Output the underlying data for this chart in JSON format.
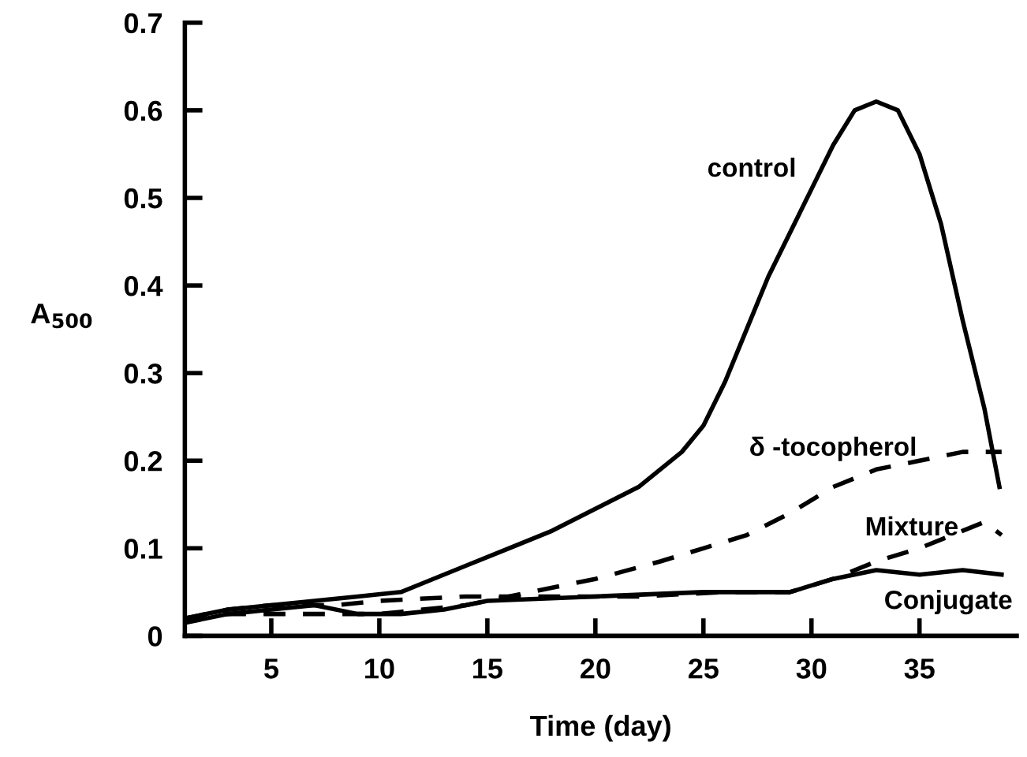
{
  "chart_data": {
    "type": "line",
    "xlabel": "Time (day)",
    "ylabel": "A$_{500}$",
    "xlim": [
      1,
      39.5
    ],
    "ylim": [
      0,
      0.7
    ],
    "xticks": [
      5,
      10,
      15,
      20,
      25,
      30,
      35
    ],
    "yticks": [
      0,
      0.1,
      0.2,
      0.3,
      0.4,
      0.5,
      0.6,
      0.7
    ],
    "grid": false,
    "legend": false,
    "marker": "none",
    "series": [
      {
        "name": "control",
        "color": "#000000",
        "line_style": "solid",
        "x": [
          1,
          3,
          5,
          7,
          9,
          11,
          12,
          14,
          16,
          18,
          20,
          22,
          24,
          25,
          26,
          27,
          28,
          29,
          30,
          31,
          32,
          33,
          34,
          35,
          36,
          37,
          38,
          38.7
        ],
        "values": [
          0.02,
          0.03,
          0.035,
          0.04,
          0.045,
          0.05,
          0.06,
          0.08,
          0.1,
          0.12,
          0.145,
          0.17,
          0.21,
          0.24,
          0.29,
          0.35,
          0.41,
          0.46,
          0.51,
          0.56,
          0.6,
          0.61,
          0.6,
          0.55,
          0.47,
          0.36,
          0.26,
          0.17
        ]
      },
      {
        "name": "δ -tocopherol",
        "color": "#000000",
        "line_style": "dashed",
        "x": [
          1,
          3,
          5,
          8,
          10,
          12,
          14,
          17,
          20,
          23,
          25,
          27,
          29,
          31,
          33,
          35,
          37,
          38.8
        ],
        "values": [
          0.02,
          0.025,
          0.025,
          0.025,
          0.025,
          0.03,
          0.035,
          0.05,
          0.065,
          0.085,
          0.1,
          0.115,
          0.14,
          0.17,
          0.19,
          0.2,
          0.21,
          0.21
        ]
      },
      {
        "name": "Mixture",
        "color": "#000000",
        "line_style": "dashed",
        "x": [
          1,
          3,
          5,
          8,
          10,
          14,
          18,
          22,
          26,
          29,
          31,
          33,
          35,
          37,
          38,
          38.8
        ],
        "values": [
          0.02,
          0.03,
          0.035,
          0.035,
          0.04,
          0.045,
          0.045,
          0.045,
          0.05,
          0.05,
          0.065,
          0.085,
          0.1,
          0.12,
          0.13,
          0.115
        ]
      },
      {
        "name": "Conjugate",
        "color": "#000000",
        "line_style": "solid",
        "x": [
          1,
          3,
          5,
          7,
          9,
          11,
          13,
          15,
          20,
          25,
          29,
          31,
          33,
          35,
          37,
          38.8
        ],
        "values": [
          0.015,
          0.025,
          0.03,
          0.035,
          0.025,
          0.025,
          0.03,
          0.04,
          0.045,
          0.05,
          0.05,
          0.065,
          0.075,
          0.07,
          0.075,
          0.07
        ]
      }
    ]
  }
}
